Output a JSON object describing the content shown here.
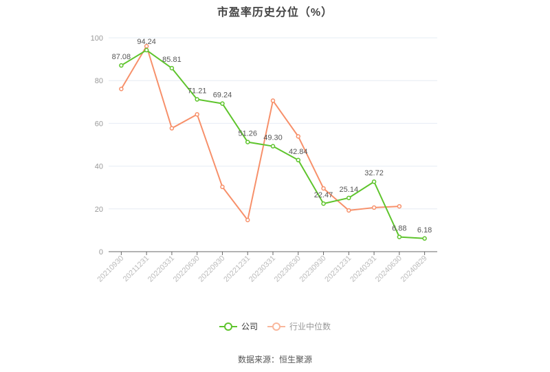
{
  "title": "市盈率历史分位（%）",
  "legend": {
    "company": "公司",
    "industry": "行业中位数"
  },
  "source": "数据来源：恒生聚源",
  "colors": {
    "company": "#5ec42c",
    "industry": "#f7906a",
    "grid": "#e6ecf4",
    "axis": "#666666",
    "tick_label": "#999999"
  },
  "chart_data": {
    "type": "line",
    "title": "市盈率历史分位（%）",
    "xlabel": "",
    "ylabel": "",
    "ylim": [
      0,
      100
    ],
    "yticks": [
      0,
      20,
      40,
      60,
      80,
      100
    ],
    "grid": true,
    "legend_position": "bottom",
    "categories": [
      "20210930",
      "20211231",
      "20220331",
      "20220630",
      "20220930",
      "20221231",
      "20230331",
      "20230630",
      "20230930",
      "20231231",
      "20240331",
      "20240630",
      "20240829"
    ],
    "series": [
      {
        "name": "公司",
        "values": [
          87.08,
          94.24,
          85.81,
          71.21,
          69.24,
          51.26,
          49.3,
          42.84,
          22.47,
          25.14,
          32.72,
          6.88,
          6.18
        ],
        "labels": [
          "87.08",
          "94.24",
          "85.81",
          "71.21",
          "69.24",
          "51.26",
          "49.30",
          "42.84",
          "22.47",
          "25.14",
          "32.72",
          "6.88",
          "6.18"
        ]
      },
      {
        "name": "行业中位数",
        "values": [
          76.1,
          96.1,
          57.7,
          64.2,
          30.3,
          14.8,
          70.6,
          53.9,
          29.6,
          19.3,
          20.6,
          21.2,
          null
        ]
      }
    ]
  }
}
